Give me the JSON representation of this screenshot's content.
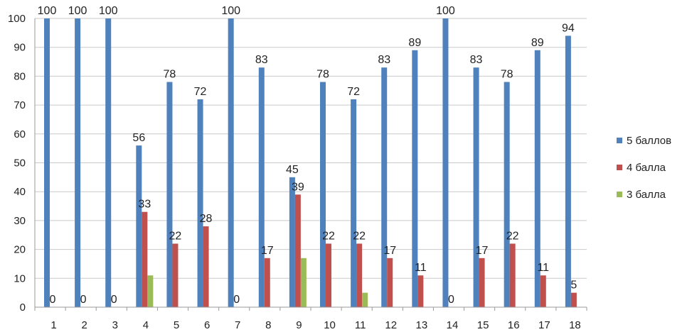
{
  "chart_data": {
    "type": "bar",
    "categories": [
      "1",
      "2",
      "3",
      "4",
      "5",
      "6",
      "7",
      "8",
      "9",
      "10",
      "11",
      "12",
      "13",
      "14",
      "15",
      "16",
      "17",
      "18"
    ],
    "series": [
      {
        "name": "5 баллов",
        "color": "#4f81bd",
        "values": [
          100,
          100,
          100,
          56,
          78,
          72,
          100,
          83,
          45,
          78,
          72,
          83,
          89,
          100,
          83,
          78,
          89,
          94
        ]
      },
      {
        "name": "4 балла",
        "color": "#c0504d",
        "values": [
          0,
          0,
          0,
          33,
          22,
          28,
          0,
          17,
          39,
          22,
          22,
          17,
          11,
          0,
          17,
          22,
          11,
          5
        ]
      },
      {
        "name": "3 балла",
        "color": "#9bbb59",
        "values": [
          null,
          null,
          null,
          11,
          null,
          null,
          null,
          null,
          17,
          null,
          5,
          null,
          null,
          null,
          null,
          null,
          null,
          null
        ]
      }
    ],
    "data_labels": {
      "5 баллов": [
        "100",
        "100",
        "100",
        "56",
        "78",
        "72",
        "100",
        "83",
        "45",
        "78",
        "72",
        "83",
        "89",
        "100",
        "83",
        "78",
        "89",
        "94"
      ],
      "4 балла": [
        "0",
        "0",
        "0",
        "33",
        "22",
        "28",
        "0",
        "17",
        "39",
        "22",
        "22",
        "17",
        "11",
        "0",
        "17",
        "22",
        "11",
        "5"
      ]
    },
    "y_ticks": [
      "0",
      "10",
      "20",
      "30",
      "40",
      "50",
      "60",
      "70",
      "80",
      "90",
      "100"
    ],
    "ylim": [
      0,
      100
    ],
    "grid": true,
    "legend_position": "right",
    "title": "",
    "xlabel": "",
    "ylabel": ""
  }
}
